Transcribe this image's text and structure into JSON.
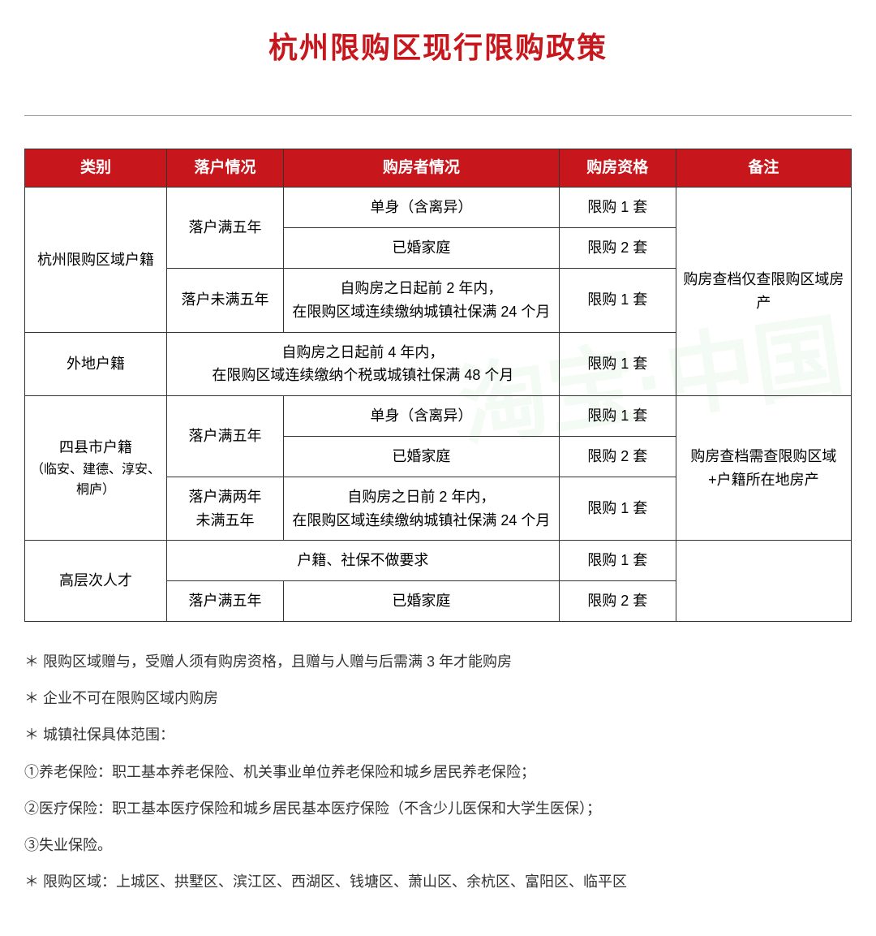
{
  "title": "杭州限购区现行限购政策",
  "header_bg": "#c8161d",
  "header_fg": "#ffffff",
  "title_color": "#c8161d",
  "columns": [
    "类别",
    "落户情况",
    "购房者情况",
    "购房资格",
    "备注"
  ],
  "rows": [
    {
      "category": "杭州限购区域户籍",
      "settle": "落户满五年",
      "buyer": "单身（含离异）",
      "qual": "限购 1 套",
      "remark": "购房查档仅查限购区域房产"
    },
    {
      "buyer": "已婚家庭",
      "qual": "限购 2 套"
    },
    {
      "settle": "落户未满五年",
      "buyer": "自购房之日起前 2 年内，\n在限购区域连续缴纳城镇社保满 24 个月",
      "qual": "限购 1 套"
    },
    {
      "category": "外地户籍",
      "buyer_span": "自购房之日起前 4 年内，\n在限购区域连续缴纳个税或城镇社保满 48 个月",
      "qual": "限购 1 套"
    },
    {
      "category": "四县市户籍",
      "category_sub": "（临安、建德、淳安、桐庐）",
      "settle": "落户满五年",
      "buyer": "单身（含离异）",
      "qual": "限购 1 套",
      "remark": "购房查档需查限购区域+户籍所在地房产"
    },
    {
      "buyer": "已婚家庭",
      "qual": "限购 2 套"
    },
    {
      "settle": "落户满两年\n未满五年",
      "buyer": "自购房之日前 2 年内，\n在限购区域连续缴纳城镇社保满 24 个月",
      "qual": "限购 1 套"
    },
    {
      "category": "高层次人才",
      "buyer_span": "户籍、社保不做要求",
      "qual": "限购 1 套"
    },
    {
      "settle": "落户满五年",
      "buyer": "已婚家庭",
      "qual": "限购 2 套"
    }
  ],
  "notes": [
    "＊ 限购区域赠与，受赠人须有购房资格，且赠与人赠与后需满 3 年才能购房",
    "＊ 企业不可在限购区域内购房",
    "＊ 城镇社保具体范围：",
    "①养老保险：职工基本养老保险、机关事业单位养老保险和城乡居民养老保险；",
    "②医疗保险：职工基本医疗保险和城乡居民基本医疗保险（不含少儿医保和大学生医保）；",
    "③失业保险。",
    "＊ 限购区域：上城区、拱墅区、滨江区、西湖区、钱塘区、萧山区、余杭区、富阳区、临平区"
  ]
}
